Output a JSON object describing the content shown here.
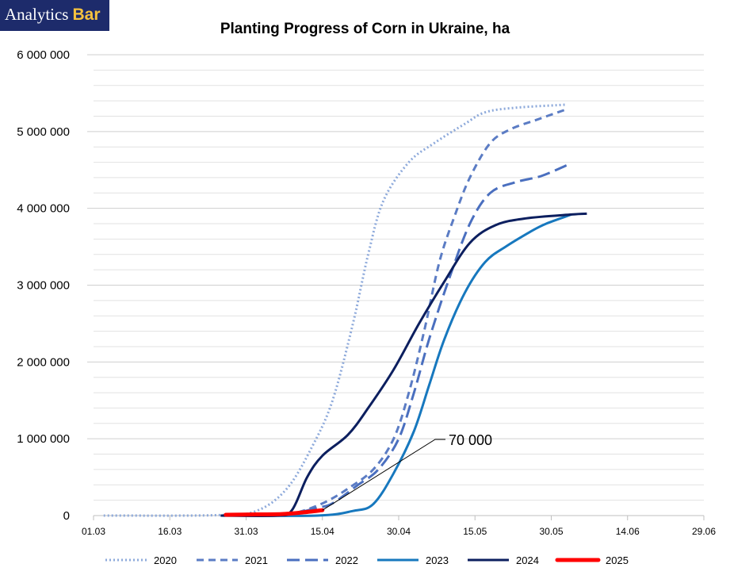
{
  "logo": {
    "part1": "Analytics",
    "part2": "Bar"
  },
  "chart_data": {
    "type": "line",
    "title": "Planting Progress of Corn in Ukraine, ha",
    "xlabel": "",
    "ylabel": "",
    "x_axis": {
      "type": "date",
      "year": 2025,
      "min": "01.03",
      "max": "29.06",
      "ticks": [
        "01.03",
        "16.03",
        "31.03",
        "15.04",
        "30.04",
        "15.05",
        "30.05",
        "14.06",
        "29.06"
      ]
    },
    "ylim": [
      0,
      6000000
    ],
    "y_ticks": [
      0,
      1000000,
      2000000,
      3000000,
      4000000,
      5000000,
      6000000
    ],
    "y_tick_labels": [
      "0",
      "1 000 000",
      "2 000 000",
      "3 000 000",
      "4 000 000",
      "5 000 000",
      "6 000 000"
    ],
    "grid": "horizontal",
    "legend": "bottom",
    "series": [
      {
        "name": "2020",
        "color": "#8eaadb",
        "dash": "dotted",
        "points": [
          [
            "03.03",
            0
          ],
          [
            "25.03",
            5000
          ],
          [
            "02.04",
            60000
          ],
          [
            "08.04",
            350000
          ],
          [
            "13.04",
            900000
          ],
          [
            "17.04",
            1500000
          ],
          [
            "21.04",
            2500000
          ],
          [
            "24.04",
            3400000
          ],
          [
            "27.04",
            4100000
          ],
          [
            "02.05",
            4600000
          ],
          [
            "07.05",
            4850000
          ],
          [
            "13.05",
            5100000
          ],
          [
            "17.05",
            5250000
          ],
          [
            "23.05",
            5310000
          ],
          [
            "02.06",
            5350000
          ]
        ]
      },
      {
        "name": "2021",
        "color": "#5b7cc4",
        "dash": "dashed",
        "points": [
          [
            "08.04",
            0
          ],
          [
            "12.04",
            80000
          ],
          [
            "16.04",
            190000
          ],
          [
            "20.04",
            350000
          ],
          [
            "25.04",
            600000
          ],
          [
            "29.04",
            1000000
          ],
          [
            "02.05",
            1600000
          ],
          [
            "05.05",
            2400000
          ],
          [
            "08.05",
            3300000
          ],
          [
            "11.05",
            3900000
          ],
          [
            "14.05",
            4400000
          ],
          [
            "18.05",
            4850000
          ],
          [
            "22.05",
            5030000
          ],
          [
            "27.05",
            5150000
          ],
          [
            "02.06",
            5290000
          ]
        ]
      },
      {
        "name": "2022",
        "color": "#4a6fbf",
        "dash": "longdash",
        "points": [
          [
            "08.04",
            0
          ],
          [
            "14.04",
            100000
          ],
          [
            "17.04",
            160000
          ],
          [
            "22.04",
            400000
          ],
          [
            "26.04",
            600000
          ],
          [
            "30.04",
            1000000
          ],
          [
            "03.05",
            1600000
          ],
          [
            "06.05",
            2300000
          ],
          [
            "10.05",
            3100000
          ],
          [
            "14.05",
            3800000
          ],
          [
            "18.05",
            4200000
          ],
          [
            "23.05",
            4340000
          ],
          [
            "28.05",
            4420000
          ],
          [
            "02.06",
            4560000
          ]
        ]
      },
      {
        "name": "2023",
        "color": "#1778be",
        "dash": "solid",
        "points": [
          [
            "26.03",
            0
          ],
          [
            "14.04",
            0
          ],
          [
            "21.04",
            60000
          ],
          [
            "25.04",
            150000
          ],
          [
            "29.04",
            550000
          ],
          [
            "03.05",
            1100000
          ],
          [
            "06.05",
            1700000
          ],
          [
            "09.05",
            2300000
          ],
          [
            "13.05",
            2900000
          ],
          [
            "17.05",
            3300000
          ],
          [
            "21.05",
            3500000
          ],
          [
            "26.05",
            3700000
          ],
          [
            "29.05",
            3800000
          ],
          [
            "03.06",
            3920000
          ]
        ]
      },
      {
        "name": "2024",
        "color": "#0c1f5f",
        "dash": "solid",
        "points": [
          [
            "26.03",
            0
          ],
          [
            "06.04",
            0
          ],
          [
            "09.04",
            70000
          ],
          [
            "12.04",
            500000
          ],
          [
            "15.04",
            780000
          ],
          [
            "20.04",
            1050000
          ],
          [
            "24.04",
            1400000
          ],
          [
            "29.04",
            1900000
          ],
          [
            "04.05",
            2500000
          ],
          [
            "09.05",
            3050000
          ],
          [
            "14.05",
            3550000
          ],
          [
            "19.05",
            3780000
          ],
          [
            "25.05",
            3870000
          ],
          [
            "03.06",
            3920000
          ],
          [
            "06.06",
            3930000
          ]
        ]
      },
      {
        "name": "2025",
        "color": "#ff0000",
        "dash": "solid",
        "bold": true,
        "points": [
          [
            "27.03",
            10000
          ],
          [
            "02.04",
            15000
          ],
          [
            "07.04",
            20000
          ],
          [
            "11.04",
            40000
          ],
          [
            "15.04",
            70000
          ]
        ]
      }
    ],
    "annotations": [
      {
        "text": "70 000",
        "x": "15.04",
        "y": 70000
      }
    ]
  }
}
